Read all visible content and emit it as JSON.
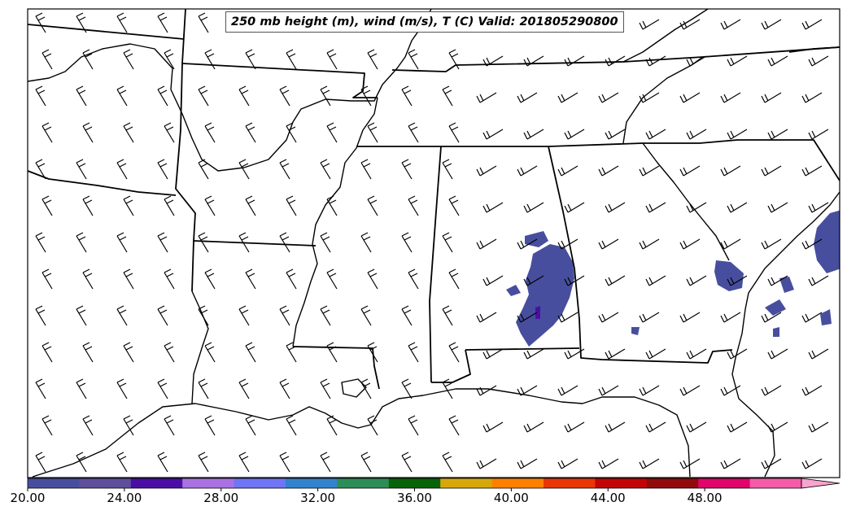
{
  "title": "250 mb height (m), wind (m/s), T (C) Valid: 201805290800",
  "colorbar": {
    "min": 20.0,
    "max": 52.0,
    "step": 2.0,
    "extend": "max",
    "colors": [
      "#484e9e",
      "#5e4f9c",
      "#4b0ea5",
      "#a972e3",
      "#6f75f4",
      "#3283cd",
      "#2e8d57",
      "#086308",
      "#d6a80b",
      "#ff8000",
      "#ea3507",
      "#c30406",
      "#910b0d",
      "#e0056b",
      "#f55ca8"
    ],
    "extend_color": "#f9a4cf",
    "tick_labels": [
      "20.00",
      "24.00",
      "28.00",
      "32.00",
      "36.00",
      "40.00",
      "44.00",
      "48.00"
    ]
  },
  "map": {
    "region": "Southeastern United States",
    "features": [
      "state boundaries",
      "coastlines",
      "wind barbs",
      "temperature shading"
    ],
    "shaded_level_color": "#484e9e"
  }
}
